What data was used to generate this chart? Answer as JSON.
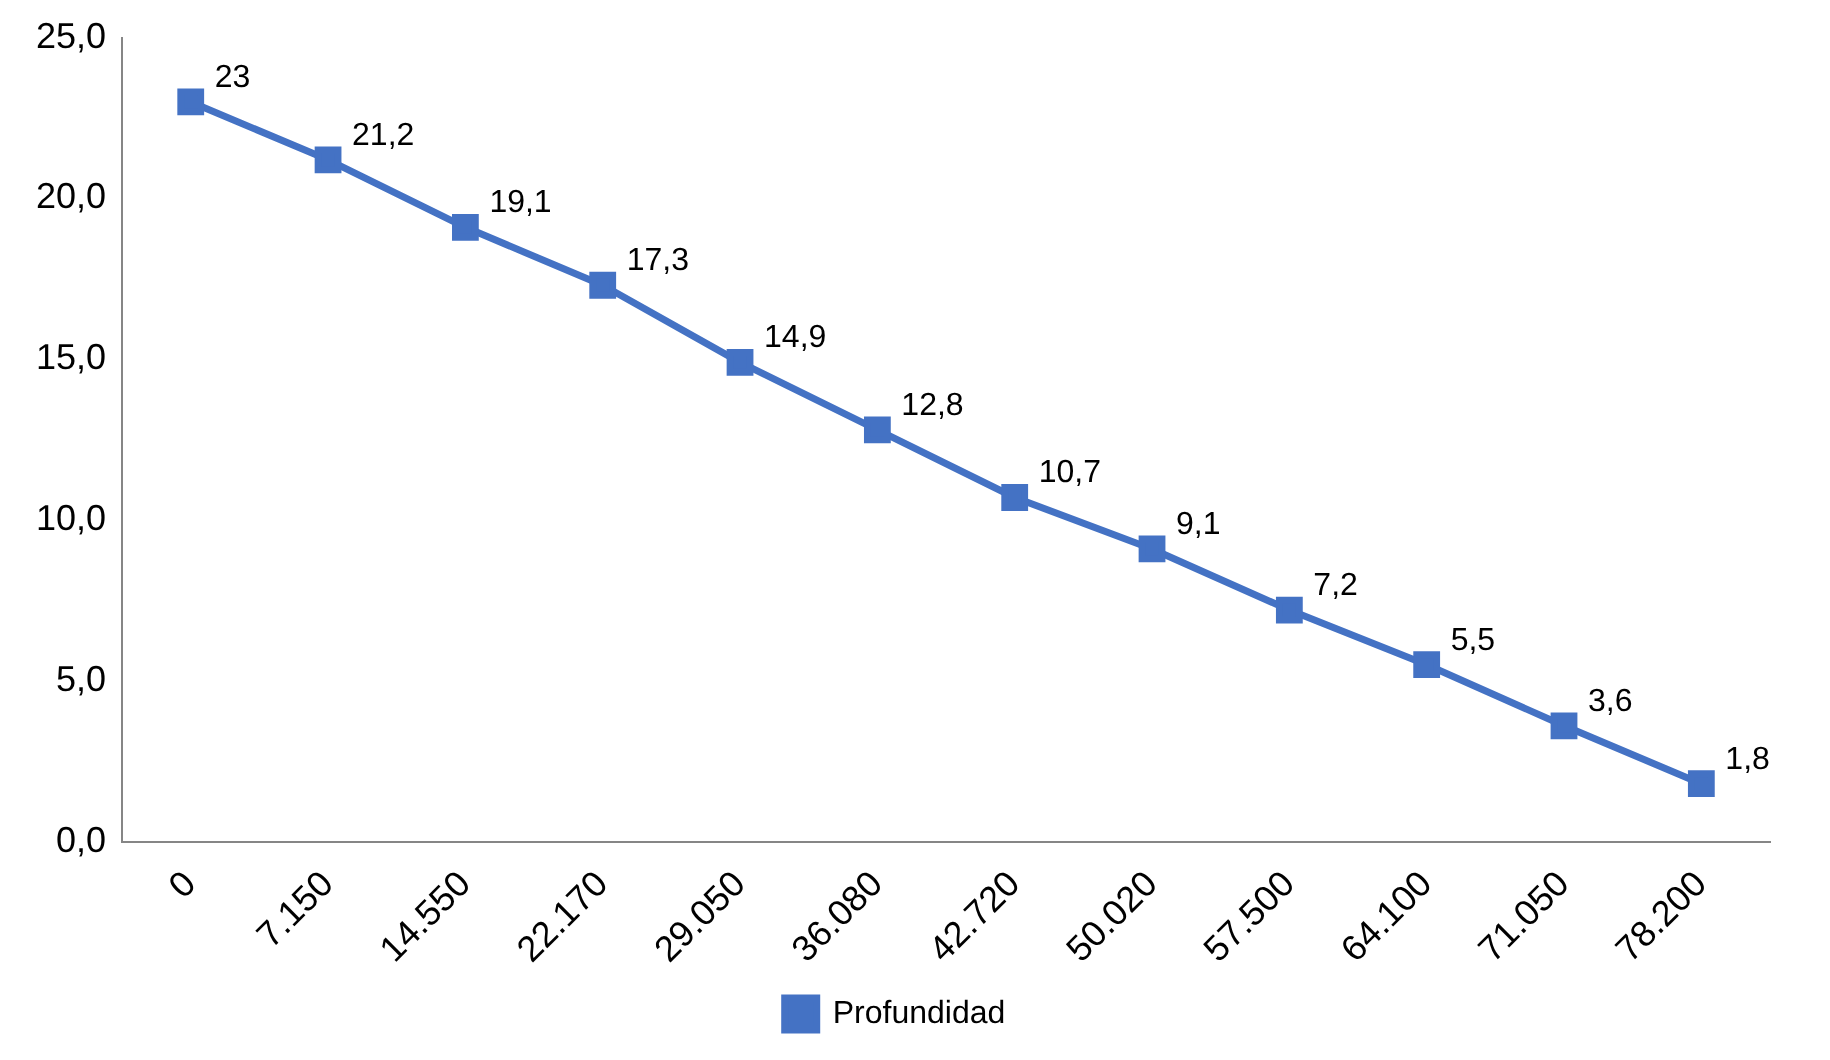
{
  "chart_data": {
    "type": "line",
    "categories": [
      "0",
      "7.150",
      "14.550",
      "22.170",
      "29.050",
      "36.080",
      "42.720",
      "50.020",
      "57.500",
      "64.100",
      "71.050",
      "78.200"
    ],
    "series": [
      {
        "name": "Profundidad",
        "color": "#4472c4",
        "values": [
          23,
          21.2,
          19.1,
          17.3,
          14.9,
          12.8,
          10.7,
          9.1,
          7.2,
          5.5,
          3.6,
          1.8
        ],
        "value_labels": [
          "23",
          "21,2",
          "19,1",
          "17,3",
          "14,9",
          "12,8",
          "10,7",
          "9,1",
          "7,2",
          "5,5",
          "3,6",
          "1,8"
        ]
      }
    ],
    "ylim": [
      0,
      25
    ],
    "yticks": [
      {
        "value": 0,
        "label": "0,0"
      },
      {
        "value": 5,
        "label": "5,0"
      },
      {
        "value": 10,
        "label": "10,0"
      },
      {
        "value": 15,
        "label": "15,0"
      },
      {
        "value": 20,
        "label": "20,0"
      },
      {
        "value": 25,
        "label": "25,0"
      }
    ],
    "grid": false,
    "legend": "bottom",
    "marker": "square",
    "line_style": "solid"
  }
}
